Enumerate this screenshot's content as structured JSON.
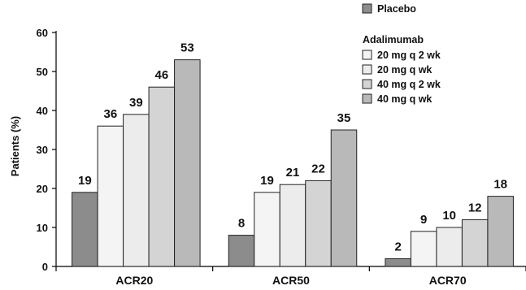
{
  "chart_data": {
    "type": "bar",
    "ylabel": "Patients (%)",
    "xlabel": "",
    "ylim": [
      0,
      60
    ],
    "yticks": [
      0,
      10,
      20,
      30,
      40,
      50,
      60
    ],
    "categories": [
      "ACR20",
      "ACR50",
      "ACR70"
    ],
    "series": [
      {
        "name": "Placebo",
        "values": [
          19,
          8,
          2
        ],
        "color": "#8c8c8c"
      },
      {
        "name": "20 mg q 2 wk",
        "values": [
          36,
          19,
          9
        ],
        "color": "#f4f4f4"
      },
      {
        "name": "20 mg q wk",
        "values": [
          39,
          21,
          10
        ],
        "color": "#ececec"
      },
      {
        "name": "40 mg q 2 wk",
        "values": [
          46,
          22,
          12
        ],
        "color": "#d4d4d4"
      },
      {
        "name": "40 mg q wk",
        "values": [
          53,
          35,
          18
        ],
        "color": "#b9b9b9"
      }
    ],
    "legend": {
      "placement": "top-right",
      "group_heading": "Adalimumab"
    },
    "grid": false,
    "data_labels": true
  }
}
